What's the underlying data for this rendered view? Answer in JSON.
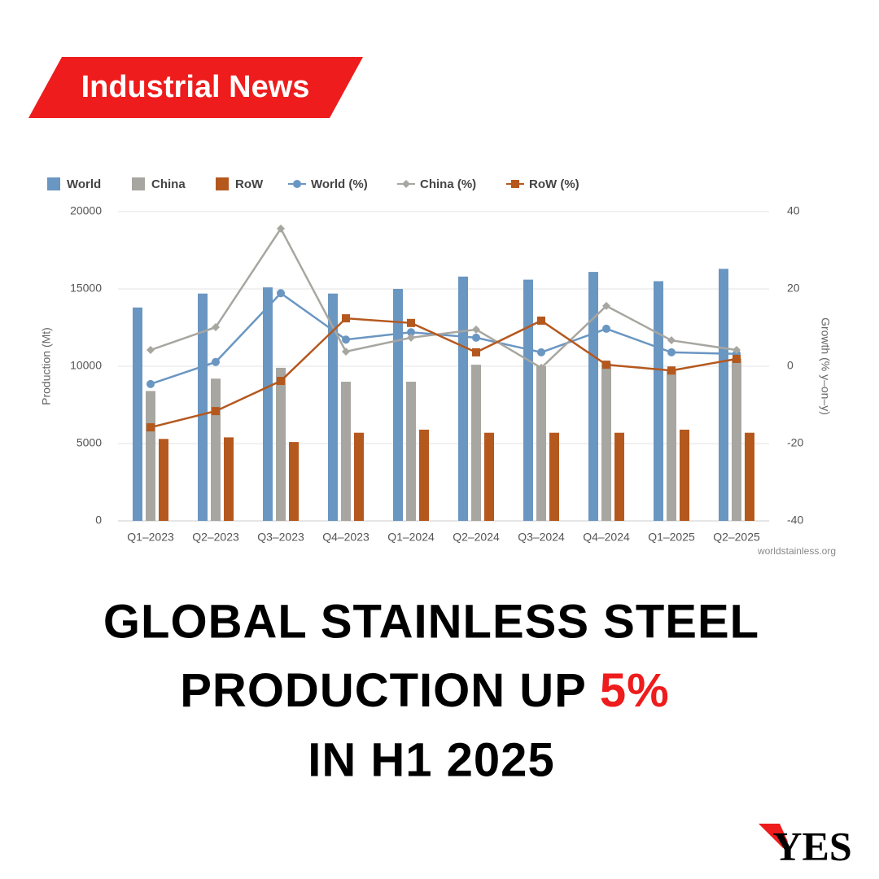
{
  "banner": "Industrial News",
  "headline": {
    "line1": "GLOBAL STAINLESS STEEL",
    "line2": "PRODUCTION UP",
    "highlight": "5%",
    "line3": "IN H1 2025"
  },
  "logo": "YES",
  "chart_data": {
    "type": "bar",
    "categories": [
      "Q1–2023",
      "Q2–2023",
      "Q3–2023",
      "Q4–2023",
      "Q1–2024",
      "Q2–2024",
      "Q3–2024",
      "Q4–2024",
      "Q1–2025",
      "Q2–2025"
    ],
    "series": [
      {
        "name": "World",
        "type": "bar",
        "color": "#6a96c2",
        "values": [
          13800,
          14700,
          15100,
          14700,
          15000,
          15800,
          15600,
          16100,
          15500,
          16300
        ]
      },
      {
        "name": "China",
        "type": "bar",
        "color": "#a7a6a0",
        "values": [
          8400,
          9200,
          9900,
          9000,
          9000,
          10100,
          10000,
          10200,
          9700,
          10500
        ]
      },
      {
        "name": "RoW",
        "type": "bar",
        "color": "#b5581e",
        "values": [
          5300,
          5400,
          5100,
          5700,
          5900,
          5700,
          5700,
          5700,
          5900,
          5700
        ]
      },
      {
        "name": "World (%)",
        "type": "line",
        "axis": "y2",
        "marker": "circle",
        "color": "#6a96c2",
        "values": [
          -4.6,
          1.1,
          18.9,
          6.9,
          8.8,
          7.4,
          3.6,
          9.7,
          3.6,
          3.2
        ]
      },
      {
        "name": "China (%)",
        "type": "line",
        "axis": "y2",
        "marker": "diamond",
        "color": "#a7a6a0",
        "values": [
          4.2,
          10.1,
          35.6,
          3.8,
          7.4,
          9.5,
          -0.4,
          15.6,
          6.7,
          4.2
        ]
      },
      {
        "name": "RoW (%)",
        "type": "line",
        "axis": "y2",
        "marker": "square",
        "color": "#b5581e",
        "values": [
          -15.8,
          -11.6,
          -3.8,
          12.4,
          11.2,
          3.6,
          11.8,
          0.4,
          -1.1,
          1.9
        ]
      }
    ],
    "ylabel": "Production (Mt)",
    "y2label": "Growth (% y–on–y)",
    "ylim": [
      0,
      20000
    ],
    "yticks": [
      0,
      5000,
      10000,
      15000,
      20000
    ],
    "y2lim": [
      -40,
      40
    ],
    "y2ticks": [
      -40,
      -20,
      0,
      20,
      40
    ],
    "grid": true,
    "legend": "top",
    "source": "worldstainless.org"
  }
}
